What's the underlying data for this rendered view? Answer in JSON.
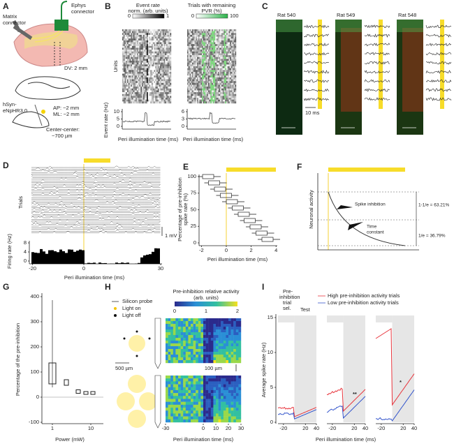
{
  "A": {
    "letter": "A",
    "ephys": [
      "Ephys",
      "connector"
    ],
    "matrix": [
      "Matrix",
      "connector"
    ],
    "dv": "DV: 2 mm",
    "virus": [
      "hSyn-",
      "eNpHR3.0"
    ],
    "ap": "AP: ~2 mm",
    "ml": "ML: ~2 mm",
    "center": [
      "Center-center:",
      "~700 µm"
    ]
  },
  "B": {
    "letter": "B",
    "left_cbar_title": [
      "Event rate",
      "norm. (arb. units)"
    ],
    "left_cbar_ticks": [
      0,
      1
    ],
    "right_cbar_title": [
      "Trials with remaining",
      "PVR (%)"
    ],
    "right_cbar_ticks": [
      0,
      100
    ],
    "units_label": "Units",
    "ylabel": "Event rate (Hz)",
    "left_yticks": [
      10,
      5,
      0
    ],
    "right_yticks": [
      6,
      3,
      0
    ],
    "xlabel": "Peri illumination time (ms)"
  },
  "C": {
    "letter": "C",
    "rats": [
      "Rat 540",
      "Rat 549",
      "Rat 548"
    ],
    "scale": "10 ms"
  },
  "D": {
    "letter": "D",
    "trials": "Trials",
    "scale": "1 mV",
    "ylabel": "Firing rate (Hz)",
    "yticks": [
      8,
      4,
      0
    ],
    "xticks": [
      -20,
      0,
      30
    ],
    "xlabel": "Peri illumination time (ms)"
  },
  "E": {
    "letter": "E",
    "ylabel": [
      "Percentage of pre-inhibition",
      "spike rate (%)"
    ],
    "yticks": [
      0,
      25,
      50,
      75,
      100
    ],
    "xticks": [
      -2,
      0,
      2,
      4
    ],
    "xlabel": "Peri illumination time (ms)"
  },
  "F": {
    "letter": "F",
    "ylabel": "Neuronal activity",
    "spike": "Spike inhibition",
    "tau": [
      "Time",
      "constant"
    ],
    "upper": "1-1/e = 63.21%",
    "lower": "1/e = 36.79%"
  },
  "G": {
    "letter": "G",
    "ylabel": "Percentage of the pre-inhibition",
    "yticks": [
      -100,
      0,
      100,
      200,
      300,
      400
    ],
    "xticks": [
      1,
      10
    ],
    "xlabel": "Power (mW)"
  },
  "H": {
    "letter": "H",
    "legend": [
      "Silicon probe",
      "Light on",
      "Light off"
    ],
    "scale_left": "500 µm",
    "cbar_title": [
      "Pre-inhibition relative activity",
      "(arb. units)"
    ],
    "cbar_ticks": [
      0,
      1,
      2
    ],
    "scale_right": "100 µm",
    "xticks": [
      -30,
      0,
      10,
      20,
      30
    ],
    "xlabel": "Peri illumination time (ms)"
  },
  "I": {
    "letter": "I",
    "selection": [
      "Pre-",
      "inhibition",
      "trial",
      "sel."
    ],
    "test": "Test",
    "legend": [
      "High pre-inhibition activity trials",
      "Low pre-inhibition activity trials"
    ],
    "ylabel": "Average spike rate (Hz)",
    "yticks": [
      0,
      5,
      10,
      15
    ],
    "xticks": [
      -20,
      20,
      40
    ],
    "stars": [
      "**",
      "*"
    ],
    "xlabel": "Peri illumination time (ms)"
  }
}
